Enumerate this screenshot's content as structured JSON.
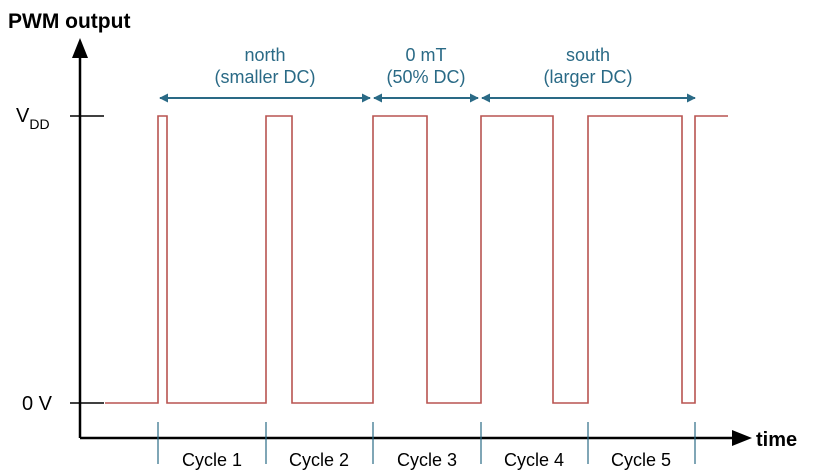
{
  "title": "PWM output",
  "x_axis_label": "time",
  "y_ticks": {
    "high_main": "V",
    "high_sub": "DD",
    "low": "0 V"
  },
  "regions": [
    {
      "line1": "north",
      "line2": "(smaller DC)"
    },
    {
      "line1": "0 mT",
      "line2": "(50% DC)"
    },
    {
      "line1": "south",
      "line2": "(larger DC)"
    }
  ],
  "cycles": [
    "Cycle 1",
    "Cycle 2",
    "Cycle 3",
    "Cycle 4",
    "Cycle 5"
  ],
  "duty_cycles_percent": [
    10,
    25,
    50,
    67,
    90
  ],
  "colors": {
    "axis": "#000000",
    "signal": "#b85450",
    "arrow": "#2a6a86",
    "annotation_text": "#2a6a86",
    "cycle_ticks": "#2a6a86",
    "label_text": "#000000"
  }
}
